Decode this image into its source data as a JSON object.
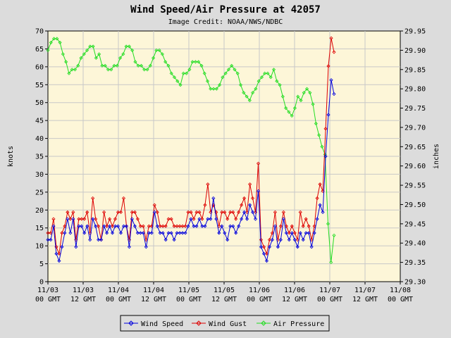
{
  "chart_data": {
    "type": "line",
    "title": "Wind Speed/Air Pressure at 42057",
    "subtitle": "Image Credit: NOAA/NWS/NDBC",
    "ylabel_left": "knots",
    "ylabel_right": "inches",
    "ylim_left": [
      0,
      70
    ],
    "ylim_right": [
      29.3,
      29.95
    ],
    "y_ticks_left": [
      "0",
      "5",
      "10",
      "15",
      "20",
      "25",
      "30",
      "35",
      "40",
      "45",
      "50",
      "55",
      "60",
      "65",
      "70"
    ],
    "y_ticks_right": [
      "29.30",
      "29.35",
      "29.40",
      "29.45",
      "29.50",
      "29.55",
      "29.60",
      "29.65",
      "29.70",
      "29.75",
      "29.80",
      "29.85",
      "29.90",
      "29.95"
    ],
    "x_ticks": [
      {
        "line1": "11/03",
        "line2": "00 GMT"
      },
      {
        "line1": "11/03",
        "line2": "12 GMT"
      },
      {
        "line1": "11/04",
        "line2": "00 GMT"
      },
      {
        "line1": "11/04",
        "line2": "12 GMT"
      },
      {
        "line1": "11/05",
        "line2": "00 GMT"
      },
      {
        "line1": "11/05",
        "line2": "12 GMT"
      },
      {
        "line1": "11/06",
        "line2": "00 GMT"
      },
      {
        "line1": "11/06",
        "line2": "12 GMT"
      },
      {
        "line1": "11/07",
        "line2": "00 GMT"
      },
      {
        "line1": "11/07",
        "line2": "12 GMT"
      },
      {
        "line1": "11/08",
        "line2": "00 GMT"
      }
    ],
    "grid": true,
    "legend_position": "bottom-center",
    "series": [
      {
        "name": "Wind Speed",
        "color": "#0000dd",
        "axis": "left",
        "marker": "diamond",
        "values": [
          11.7,
          11.7,
          15.5,
          7.8,
          5.8,
          9.7,
          13.6,
          17.5,
          13.6,
          17.5,
          9.7,
          15.5,
          15.5,
          13.6,
          15.5,
          11.7,
          17.5,
          15.5,
          11.7,
          11.7,
          15.5,
          13.6,
          15.5,
          13.6,
          15.5,
          15.5,
          13.6,
          15.5,
          15.5,
          9.7,
          17.5,
          15.5,
          13.6,
          13.6,
          13.6,
          9.7,
          13.6,
          13.6,
          19.4,
          15.5,
          13.6,
          13.6,
          11.7,
          13.6,
          13.6,
          11.7,
          13.6,
          13.6,
          13.6,
          13.6,
          15.5,
          17.5,
          15.5,
          15.5,
          17.5,
          15.5,
          15.5,
          17.5,
          17.5,
          23.3,
          17.5,
          13.6,
          15.5,
          13.6,
          11.7,
          15.5,
          15.5,
          13.6,
          15.5,
          17.5,
          19.4,
          17.5,
          21.4,
          19.4,
          17.5,
          25.3,
          9.7,
          7.8,
          5.8,
          9.7,
          11.7,
          15.5,
          9.7,
          11.7,
          17.5,
          13.6,
          11.7,
          13.6,
          11.7,
          9.7,
          13.6,
          11.7,
          13.6,
          13.6,
          9.7,
          13.6,
          17.5,
          21.4,
          19.4,
          35.0,
          46.6,
          56.3,
          52.4
        ]
      },
      {
        "name": "Wind Gust",
        "color": "#dd0000",
        "axis": "left",
        "marker": "diamond",
        "values": [
          13.6,
          13.6,
          17.5,
          9.7,
          7.8,
          13.6,
          15.5,
          19.4,
          17.5,
          19.4,
          11.7,
          17.5,
          17.5,
          17.5,
          19.4,
          13.6,
          23.3,
          17.5,
          15.5,
          11.7,
          19.4,
          15.5,
          17.5,
          15.5,
          17.5,
          19.4,
          19.4,
          23.3,
          15.5,
          11.7,
          19.4,
          19.4,
          17.5,
          15.5,
          15.5,
          11.7,
          15.5,
          15.5,
          21.4,
          19.4,
          15.5,
          15.5,
          15.5,
          17.5,
          17.5,
          15.5,
          15.5,
          15.5,
          15.5,
          15.5,
          19.4,
          19.4,
          17.5,
          19.4,
          19.4,
          17.5,
          21.4,
          27.2,
          19.4,
          21.4,
          19.4,
          15.5,
          19.4,
          19.4,
          17.5,
          19.4,
          19.4,
          17.5,
          19.4,
          21.4,
          23.3,
          19.4,
          27.2,
          23.3,
          19.4,
          33.0,
          11.7,
          9.7,
          7.8,
          11.7,
          13.6,
          19.4,
          11.7,
          15.5,
          19.4,
          15.5,
          13.6,
          15.5,
          13.6,
          11.7,
          19.4,
          15.5,
          17.5,
          15.5,
          11.7,
          15.5,
          23.3,
          27.2,
          25.3,
          42.7,
          60.2,
          68.0,
          64.1
        ]
      },
      {
        "name": "Air Pressure",
        "color": "#22dd22",
        "axis": "right",
        "marker": "diamond",
        "values": [
          29.9,
          29.92,
          29.93,
          29.93,
          29.92,
          29.89,
          29.87,
          29.84,
          29.85,
          29.85,
          29.86,
          29.88,
          29.89,
          29.9,
          29.91,
          29.91,
          29.88,
          29.89,
          29.86,
          29.86,
          29.85,
          29.85,
          29.86,
          29.86,
          29.88,
          29.89,
          29.91,
          29.91,
          29.9,
          29.87,
          29.86,
          29.86,
          29.85,
          29.85,
          29.86,
          29.88,
          29.9,
          29.9,
          29.89,
          29.87,
          29.86,
          29.84,
          29.83,
          29.82,
          29.81,
          29.84,
          29.84,
          29.85,
          29.87,
          29.87,
          29.87,
          29.86,
          29.84,
          29.82,
          29.8,
          29.8,
          29.8,
          29.81,
          29.83,
          29.84,
          29.85,
          29.86,
          29.85,
          29.84,
          29.81,
          29.79,
          29.78,
          29.77,
          29.79,
          29.8,
          29.82,
          29.83,
          29.84,
          29.84,
          29.83,
          29.85,
          29.82,
          29.81,
          29.78,
          29.75,
          29.74,
          29.73,
          29.75,
          29.78,
          29.77,
          29.79,
          29.8,
          29.79,
          29.76,
          29.71,
          29.68,
          29.65,
          29.63,
          29.45,
          29.35,
          29.42
        ]
      }
    ]
  }
}
